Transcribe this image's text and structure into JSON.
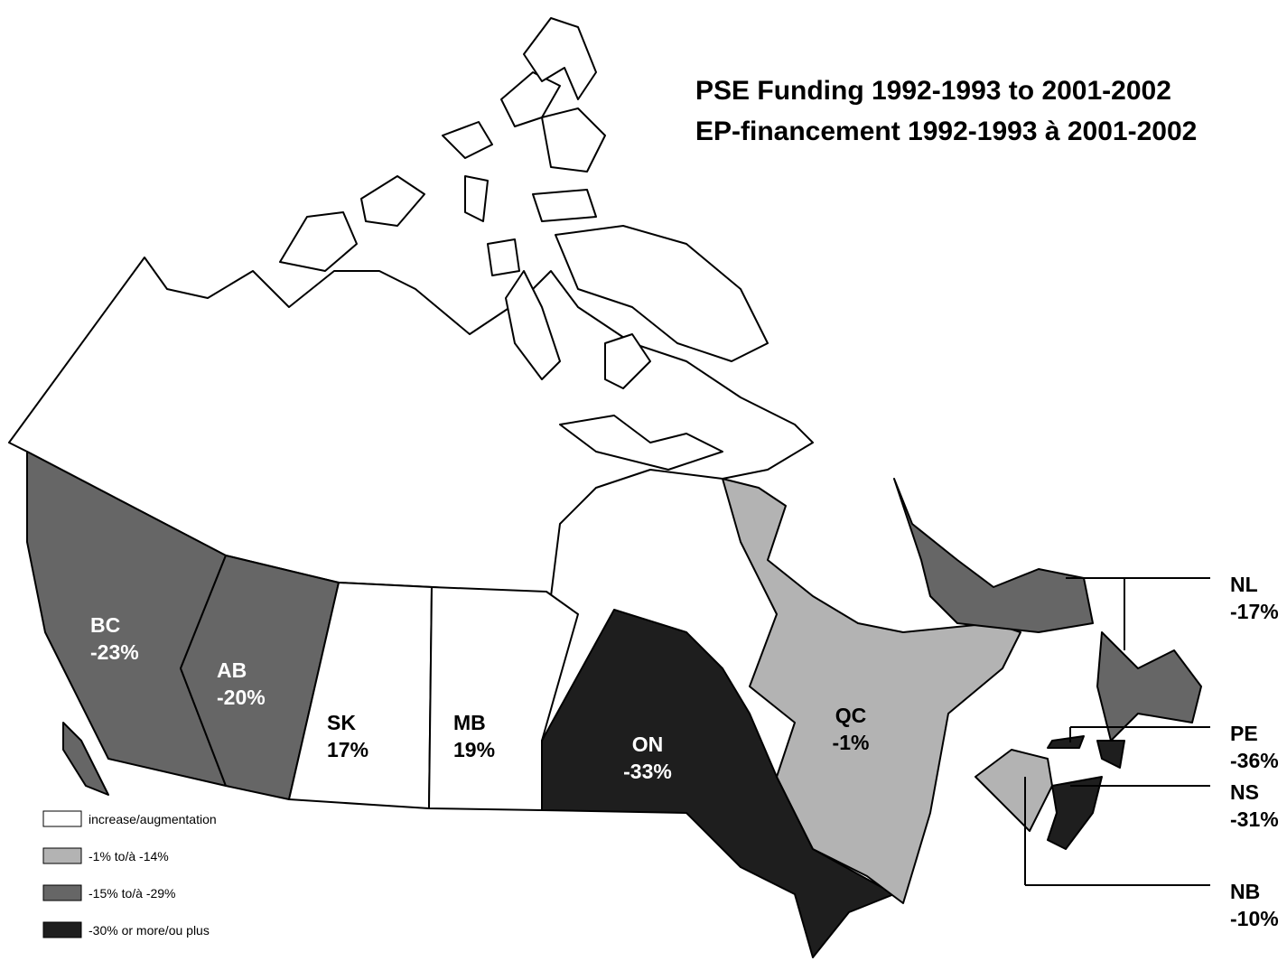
{
  "title": [
    "PSE Funding 1992-1993 to 2001-2002",
    "EP-financement 1992-1993 à 2001-2002"
  ],
  "provinces": [
    {
      "code": "BC",
      "label": "-23%",
      "color": "#666666"
    },
    {
      "code": "AB",
      "label": "-20%",
      "color": "#666666"
    },
    {
      "code": "SK",
      "label": "17%",
      "color": "#ffffff"
    },
    {
      "code": "MB",
      "label": "19%",
      "color": "#ffffff"
    },
    {
      "code": "ON",
      "label": "-33%",
      "color": "#1e1e1e"
    },
    {
      "code": "QC",
      "label": "-1%",
      "color": "#b3b3b3"
    },
    {
      "code": "NL",
      "label": "-17%",
      "color": "#666666"
    },
    {
      "code": "PE",
      "label": "-36%",
      "color": "#1e1e1e"
    },
    {
      "code": "NS",
      "label": "-31%",
      "color": "#1e1e1e"
    },
    {
      "code": "NB",
      "label": "-10%",
      "color": "#b3b3b3"
    }
  ],
  "legend": [
    {
      "label": "increase/augmentation",
      "color": "#ffffff"
    },
    {
      "label": "-1% to/à -14%",
      "color": "#b3b3b3"
    },
    {
      "label": "-15% to/à -29%",
      "color": "#666666"
    },
    {
      "label": "-30% or more/ou plus",
      "color": "#1e1e1e"
    }
  ]
}
